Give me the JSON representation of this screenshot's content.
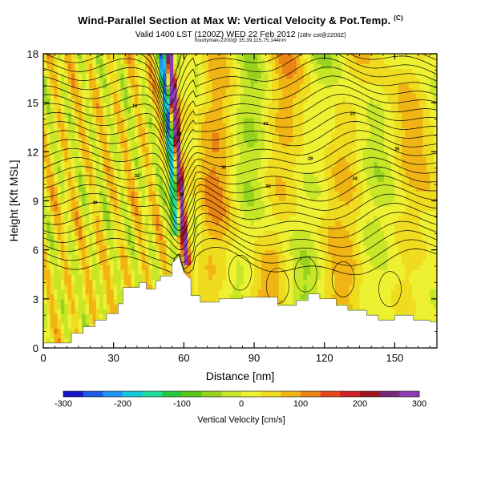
{
  "header": {
    "title": "Wind-Parallel Section at Max W: Vertical Velocity & Pot.Temp.",
    "title_mark": "(C)",
    "subtitle": "Valid 1400 LST (1200Z) WED 22 Feb 2012",
    "subtitle_small": "[18hr cst@2200Z]",
    "subline": "hourlymax-2200@ 35.39,115.75,144nm"
  },
  "chart_data": {
    "type": "heatmap",
    "description": "Vertical cross-section: shaded vertical velocity with potential temperature contours",
    "xlabel": "Distance [nm]",
    "ylabel": "Height [Kft MSL]",
    "xlim": [
      0,
      168
    ],
    "ylim": [
      0,
      18
    ],
    "xticks": [
      "0",
      "30",
      "60",
      "90",
      "120",
      "150"
    ],
    "yticks": [
      "0",
      "3",
      "6",
      "9",
      "12",
      "15",
      "18"
    ],
    "terrain": {
      "x": [
        0,
        12,
        12,
        17,
        17,
        22,
        22,
        27,
        27,
        32,
        32,
        34,
        34,
        41,
        41,
        44,
        44,
        48,
        48,
        50,
        50,
        55,
        55,
        58,
        60,
        63,
        63,
        67,
        67,
        75,
        75,
        85,
        85,
        100,
        100,
        108,
        108,
        113,
        113,
        118,
        118,
        125,
        125,
        130,
        130,
        138,
        138,
        143,
        143,
        150,
        150,
        158,
        158,
        165,
        165,
        168
      ],
      "height_kft": [
        0.3,
        0.3,
        0.9,
        0.9,
        1.3,
        1.3,
        1.7,
        1.7,
        2.1,
        2.1,
        2.7,
        2.7,
        3.7,
        3.7,
        4.0,
        4.0,
        3.6,
        3.6,
        4.1,
        4.1,
        4.4,
        4.4,
        5.2,
        5.6,
        4.6,
        4.2,
        3.2,
        3.2,
        2.8,
        2.8,
        3.0,
        3.0,
        3.1,
        3.1,
        2.6,
        2.6,
        2.9,
        2.9,
        3.3,
        3.3,
        3.0,
        3.0,
        2.6,
        2.6,
        2.3,
        2.3,
        2.0,
        2.0,
        1.7,
        1.7,
        2.0,
        2.0,
        1.7,
        1.7,
        1.6,
        1.6
      ]
    },
    "wave_max_x_nm": 60,
    "theta_contour_labels": [
      "40",
      "38",
      "36",
      "34",
      "32",
      "30",
      "28",
      "26",
      "24",
      "22",
      "20",
      "18"
    ],
    "colorbar": {
      "title": "Vertical Velocity [cm/s]",
      "ticks": [
        "-300",
        "-200",
        "-100",
        "0",
        "100",
        "200",
        "300"
      ],
      "min": -300,
      "max": 300,
      "colors": [
        "#1414c8",
        "#1e5ae6",
        "#1e96f0",
        "#14c8dc",
        "#1edca0",
        "#28c83c",
        "#5ac814",
        "#96d21e",
        "#c8e628",
        "#eef032",
        "#f0dc1e",
        "#f0b414",
        "#eb8214",
        "#e6461e",
        "#d21e28",
        "#a0141e",
        "#78287a",
        "#8c3cb4"
      ]
    }
  }
}
